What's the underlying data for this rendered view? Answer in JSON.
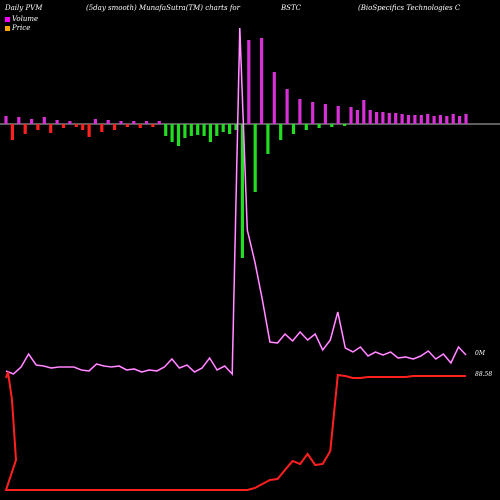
{
  "header": {
    "left": "Daily PVM",
    "method": "(5day smooth) MunafaSutra(TM) charts for",
    "symbol": "BSTC",
    "company": "(BioSpecifics Technologies C"
  },
  "legend": [
    {
      "label": "Volume",
      "color": "#ff00ff"
    },
    {
      "label": "Price",
      "color": "#ffa500"
    }
  ],
  "chart_data": {
    "type": "bar+line",
    "bars": [
      {
        "v": 8,
        "c": "#d630d6"
      },
      {
        "v": -16,
        "c": "#ff2020"
      },
      {
        "v": 7,
        "c": "#d630d6"
      },
      {
        "v": -10,
        "c": "#ff2020"
      },
      {
        "v": 5,
        "c": "#d630d6"
      },
      {
        "v": -6,
        "c": "#ff2020"
      },
      {
        "v": 7,
        "c": "#d630d6"
      },
      {
        "v": -9,
        "c": "#ff2020"
      },
      {
        "v": 4,
        "c": "#d630d6"
      },
      {
        "v": -4,
        "c": "#ff2020"
      },
      {
        "v": 3,
        "c": "#d630d6"
      },
      {
        "v": -3,
        "c": "#ff2020"
      },
      {
        "v": -6,
        "c": "#ff2020"
      },
      {
        "v": -13,
        "c": "#ff2020"
      },
      {
        "v": 5,
        "c": "#d630d6"
      },
      {
        "v": -8,
        "c": "#ff2020"
      },
      {
        "v": 4,
        "c": "#d630d6"
      },
      {
        "v": -6,
        "c": "#ff2020"
      },
      {
        "v": 3,
        "c": "#d630d6"
      },
      {
        "v": -3,
        "c": "#ff2020"
      },
      {
        "v": 3,
        "c": "#d630d6"
      },
      {
        "v": -4,
        "c": "#ff2020"
      },
      {
        "v": 3,
        "c": "#d630d6"
      },
      {
        "v": -3,
        "c": "#ff2020"
      },
      {
        "v": 3,
        "c": "#d630d6"
      },
      {
        "v": -12,
        "c": "#22dd22"
      },
      {
        "v": -18,
        "c": "#22dd22"
      },
      {
        "v": -22,
        "c": "#22dd22"
      },
      {
        "v": -14,
        "c": "#22dd22"
      },
      {
        "v": -12,
        "c": "#22dd22"
      },
      {
        "v": -11,
        "c": "#22dd22"
      },
      {
        "v": -12,
        "c": "#22dd22"
      },
      {
        "v": -18,
        "c": "#22dd22"
      },
      {
        "v": -12,
        "c": "#22dd22"
      },
      {
        "v": -8,
        "c": "#22dd22"
      },
      {
        "v": -10,
        "c": "#22dd22"
      },
      {
        "v": -6,
        "c": "#22dd22"
      },
      {
        "v": -134,
        "c": "#22dd22"
      },
      {
        "v": 84,
        "c": "#d630d6"
      },
      {
        "v": -68,
        "c": "#22dd22"
      },
      {
        "v": 86,
        "c": "#d630d6"
      },
      {
        "v": -30,
        "c": "#22dd22"
      },
      {
        "v": 52,
        "c": "#d630d6"
      },
      {
        "v": -16,
        "c": "#22dd22"
      },
      {
        "v": 35,
        "c": "#d630d6"
      },
      {
        "v": -10,
        "c": "#22dd22"
      },
      {
        "v": 25,
        "c": "#d630d6"
      },
      {
        "v": -6,
        "c": "#22dd22"
      },
      {
        "v": 22,
        "c": "#d630d6"
      },
      {
        "v": -4,
        "c": "#22dd22"
      },
      {
        "v": 20,
        "c": "#d630d6"
      },
      {
        "v": -3,
        "c": "#22dd22"
      },
      {
        "v": 18,
        "c": "#d630d6"
      },
      {
        "v": -2,
        "c": "#22dd22"
      },
      {
        "v": 17,
        "c": "#d630d6"
      },
      {
        "v": 14,
        "c": "#d630d6"
      },
      {
        "v": 24,
        "c": "#d630d6"
      },
      {
        "v": 14,
        "c": "#d630d6"
      },
      {
        "v": 12,
        "c": "#d630d6"
      },
      {
        "v": 12,
        "c": "#d630d6"
      },
      {
        "v": 11,
        "c": "#d630d6"
      },
      {
        "v": 11,
        "c": "#d630d6"
      },
      {
        "v": 10,
        "c": "#d630d6"
      },
      {
        "v": 9,
        "c": "#d630d6"
      },
      {
        "v": 9,
        "c": "#d630d6"
      },
      {
        "v": 9,
        "c": "#d630d6"
      },
      {
        "v": 10,
        "c": "#d630d6"
      },
      {
        "v": 8,
        "c": "#d630d6"
      },
      {
        "v": 9,
        "c": "#d630d6"
      },
      {
        "v": 8,
        "c": "#d630d6"
      },
      {
        "v": 10,
        "c": "#d630d6"
      },
      {
        "v": 8,
        "c": "#d630d6"
      },
      {
        "v": 10,
        "c": "#d630d6"
      }
    ],
    "volume_line": [
      371,
      374,
      367,
      354,
      365,
      366,
      368,
      367,
      367,
      367,
      370,
      371,
      364,
      366,
      367,
      366,
      370,
      369,
      372,
      370,
      371,
      367,
      359,
      368,
      365,
      372,
      368,
      358,
      370,
      366,
      374,
      28,
      230,
      262,
      300,
      342,
      343,
      334,
      341,
      332,
      340,
      334,
      350,
      340,
      312,
      348,
      352,
      347,
      356,
      352,
      355,
      352,
      358,
      357,
      359,
      356,
      351,
      359,
      354,
      363,
      347,
      355
    ],
    "price_line": [
      490,
      490,
      490,
      490,
      490,
      490,
      490,
      490,
      490,
      490,
      490,
      490,
      490,
      490,
      490,
      490,
      490,
      490,
      490,
      490,
      490,
      490,
      490,
      490,
      490,
      490,
      490,
      490,
      490,
      490,
      490,
      490,
      490,
      488,
      484,
      480,
      479,
      470,
      461,
      464,
      454,
      465,
      464,
      451,
      375,
      376,
      378,
      378,
      377,
      377,
      377,
      377,
      377,
      377,
      376,
      376,
      376,
      376,
      376,
      376,
      376,
      376
    ],
    "labels": {
      "volume_end": "0M",
      "price_end": "88.58"
    }
  }
}
